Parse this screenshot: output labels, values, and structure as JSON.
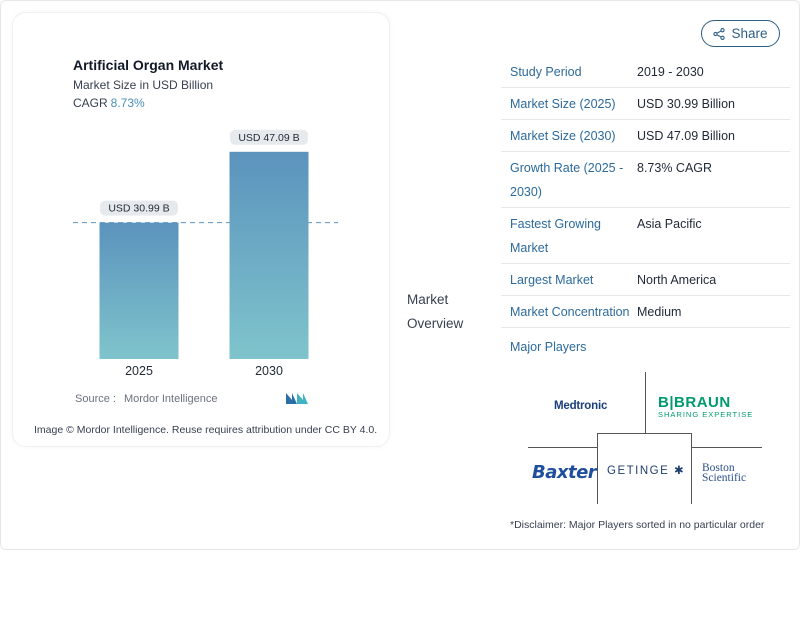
{
  "chart_data": {
    "type": "bar",
    "title": "Artificial Organ Market",
    "subtitle": "Market Size in USD Billion",
    "cagr_label": "CAGR",
    "cagr_value": "8.73%",
    "categories": [
      "2025",
      "2030"
    ],
    "values": [
      30.99,
      47.09
    ],
    "value_labels": [
      "USD 30.99 B",
      "USD 47.09 B"
    ],
    "ylim": [
      0,
      50
    ],
    "colors": {
      "bar_top": "#5b93bd",
      "bar_bottom": "#7fc4cc",
      "dashed_line": "#5b93bd"
    }
  },
  "source": {
    "label": "Source :",
    "value": "Mordor Intelligence"
  },
  "attribution": "Image © Mordor Intelligence. Reuse requires attribution under CC BY 4.0.",
  "overview": {
    "line1": "Market",
    "line2": "Overview"
  },
  "share": {
    "label": "Share",
    "icon": "share-icon"
  },
  "info": [
    {
      "label": "Study Period",
      "value": "2019 - 2030"
    },
    {
      "label": "Market Size (2025)",
      "value": "USD 30.99 Billion"
    },
    {
      "label": "Market Size (2030)",
      "value": "USD 47.09 Billion"
    },
    {
      "label": "Growth Rate (2025 - 2030)",
      "value": "8.73% CAGR"
    },
    {
      "label": "Fastest Growing Market",
      "value": "Asia Pacific"
    },
    {
      "label": "Largest Market",
      "value": "North America"
    },
    {
      "label": "Market Concentration",
      "value": "Medium"
    }
  ],
  "major_players_label": "Major Players",
  "players": {
    "medtronic": "Medtronic",
    "bbraun": "B|BRAUN",
    "bbraun_tagline": "SHARING EXPERTISE",
    "baxter": "Baxter",
    "getinge": "GETINGE ✱",
    "boston_line1": "Boston",
    "boston_line2": "Scientific"
  },
  "disclaimer": "*Disclaimer: Major Players sorted in no particular order"
}
